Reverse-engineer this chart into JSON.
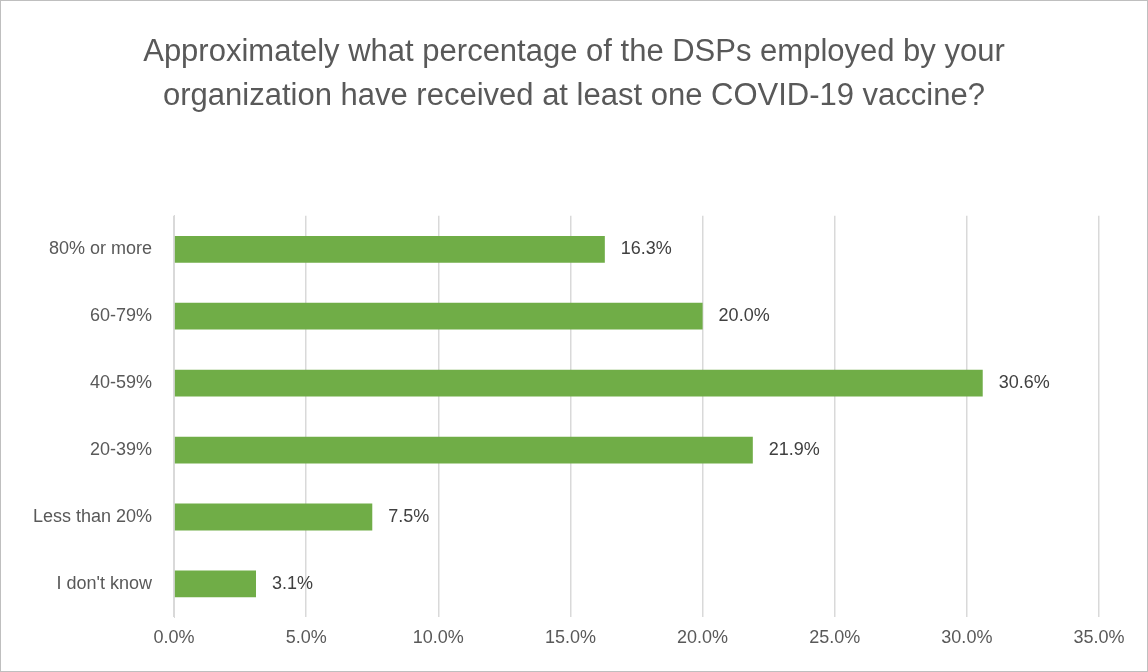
{
  "chart_data": {
    "type": "bar",
    "orientation": "horizontal",
    "title": "Approximately what percentage of the DSPs employed by your organization have received at least one COVID-19 vaccine?",
    "categories": [
      "80% or more",
      "60-79%",
      "40-59%",
      "20-39%",
      "Less than 20%",
      "I don't know"
    ],
    "values": [
      16.3,
      20.0,
      30.6,
      21.9,
      7.5,
      3.1
    ],
    "value_labels": [
      "16.3%",
      "20.0%",
      "30.6%",
      "21.9%",
      "7.5%",
      "3.1%"
    ],
    "color": "#70ad47",
    "xlim": [
      0,
      35
    ],
    "xticks": [
      {
        "value": 0,
        "label": "0.0%"
      },
      {
        "value": 5,
        "label": "5.0%"
      },
      {
        "value": 10,
        "label": "10.0%"
      },
      {
        "value": 15,
        "label": "15.0%"
      },
      {
        "value": 20,
        "label": "20.0%"
      },
      {
        "value": 25,
        "label": "25.0%"
      },
      {
        "value": 30,
        "label": "30.0%"
      },
      {
        "value": 35,
        "label": "35.0%"
      }
    ],
    "grid": "x",
    "legend": false
  }
}
